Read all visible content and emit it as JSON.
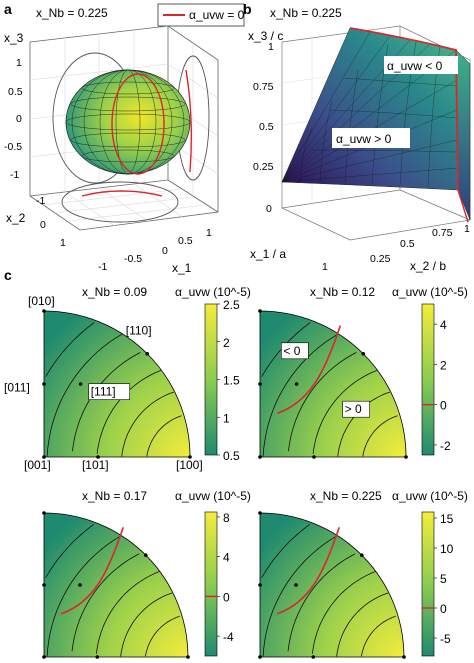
{
  "panels": {
    "a": {
      "letter": "a",
      "title": "x_Nb = 0.225",
      "legend": "α_uvw = 0",
      "axes": {
        "x1": {
          "label": "x_1",
          "ticks": [
            "-1",
            "-0.5",
            "0",
            "0.5",
            "1"
          ]
        },
        "x2": {
          "label": "x_2",
          "ticks": [
            "-1",
            "0",
            "1"
          ]
        },
        "x3": {
          "label": "x_3",
          "ticks": [
            "1",
            "0.5",
            "0",
            "-0.5",
            "-1"
          ]
        }
      },
      "colors": {
        "surface_center": "#e6e22a",
        "surface_edge": "#2aa57d",
        "contour": "#d8272d"
      }
    },
    "b": {
      "letter": "b",
      "title": "x_Nb = 0.225",
      "annotation_neg": "α_uvw < 0",
      "annotation_pos": "α_uvw > 0",
      "axes": {
        "z": {
          "label": "x_3 / c",
          "ticks": [
            "1",
            "0.75",
            "0.5",
            "0.25",
            "0"
          ]
        },
        "x": {
          "label": "x_1 / a",
          "ticks": [
            "1"
          ]
        },
        "y": {
          "label": "x_2 / b",
          "ticks": [
            "0.25",
            "0.5",
            "0.75",
            "1"
          ]
        }
      }
    },
    "c": {
      "letter": "c",
      "subplots": [
        {
          "id": "c1",
          "x_nb": 0.09,
          "title": "x_Nb = 0.09",
          "colorbar": {
            "label": "α_uvw (10^-5)",
            "min": 0.5,
            "max": 2.5,
            "ticks": [
              "2.5",
              "2",
              "1.5",
              "1",
              "0.5"
            ],
            "tick_values": [
              2.5,
              2,
              1.5,
              1,
              0.5
            ]
          },
          "zero_contour": false,
          "labels": [
            "[010]",
            "[110]",
            "[011]",
            "[111]",
            "[001]",
            "[101]",
            "[100]"
          ]
        },
        {
          "id": "c2",
          "x_nb": 0.12,
          "title": "x_Nb = 0.12",
          "colorbar": {
            "label": "α_uvw (10^-5)",
            "min": -2.5,
            "max": 5,
            "ticks": [
              "4",
              "2",
              "0",
              "-2"
            ],
            "tick_values": [
              4,
              2,
              0,
              -2
            ]
          },
          "zero_contour": true,
          "labels": [
            "< 0",
            "> 0"
          ]
        },
        {
          "id": "c3",
          "x_nb": 0.17,
          "title": "x_Nb = 0.17",
          "colorbar": {
            "label": "α_uvw (10^-5)",
            "min": -6,
            "max": 8.5,
            "ticks": [
              "8",
              "4",
              "0",
              "-4"
            ],
            "tick_values": [
              8,
              4,
              0,
              -4
            ]
          },
          "zero_contour": true,
          "labels": []
        },
        {
          "id": "c4",
          "x_nb": 0.225,
          "title": "x_Nb = 0.225",
          "colorbar": {
            "label": "α_uvw (10^-5)",
            "min": -8,
            "max": 16,
            "ticks": [
              "15",
              "10",
              "5",
              "0",
              "-5"
            ],
            "tick_values": [
              15,
              10,
              5,
              0,
              -5
            ]
          },
          "zero_contour": true,
          "labels": []
        }
      ],
      "colors": {
        "low": "#1f8a70",
        "high": "#f1ea3a",
        "zero_line": "#d8272d"
      }
    }
  },
  "chart_data": [
    {
      "type": "surface3d",
      "panel": "a",
      "title": "x_Nb = 0.225",
      "legend": [
        "α_uvw = 0"
      ],
      "xlabel": "x_1",
      "ylabel": "x_2",
      "zlabel": "x_3",
      "xlim": [
        -1,
        1
      ],
      "ylim": [
        -1,
        1
      ],
      "zlim": [
        -1,
        1
      ]
    },
    {
      "type": "surface3d",
      "panel": "b",
      "title": "x_Nb = 0.225",
      "xlabel": "x_1 / a",
      "ylabel": "x_2 / b",
      "zlabel": "x_3 / c",
      "xlim": [
        0,
        1
      ],
      "ylim": [
        0,
        1
      ],
      "zlim": [
        0,
        1
      ]
    },
    {
      "type": "heatmap",
      "panel": "c",
      "series": [
        {
          "title": "x_Nb = 0.09",
          "clim": [
            0.5,
            2.5
          ]
        },
        {
          "title": "x_Nb = 0.12",
          "clim": [
            -2.5,
            5
          ]
        },
        {
          "title": "x_Nb = 0.17",
          "clim": [
            -6,
            8.5
          ]
        },
        {
          "title": "x_Nb = 0.225",
          "clim": [
            -8,
            16
          ]
        }
      ]
    }
  ]
}
